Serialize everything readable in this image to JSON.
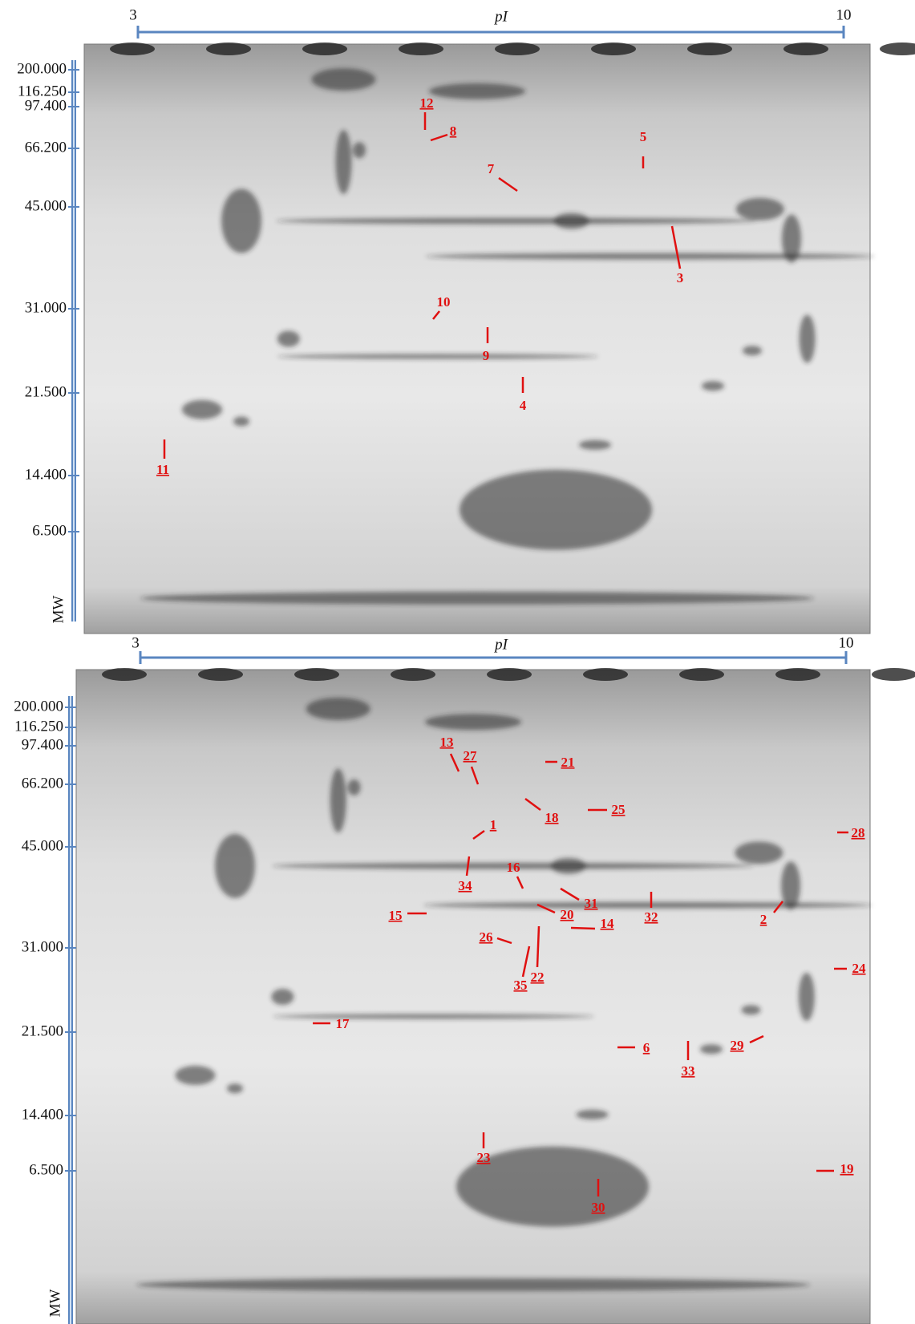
{
  "panels": [
    {
      "pi_axis": {
        "min": "3",
        "max": "10",
        "title": "pI"
      },
      "mw_axis": {
        "labels": [
          "200.000",
          "116.250",
          "97.400",
          "66.200",
          "45.000",
          "31.000",
          "21.500",
          "14.400",
          "6.500"
        ],
        "title": "MW"
      },
      "spots": [
        "12",
        "8",
        "5",
        "7",
        "3",
        "10",
        "9",
        "4",
        "11"
      ]
    },
    {
      "pi_axis": {
        "min": "3",
        "max": "10",
        "title": "pI"
      },
      "mw_axis": {
        "labels": [
          "200.000",
          "116.250",
          "97.400",
          "66.200",
          "45.000",
          "31.000",
          "21.500",
          "14.400",
          "6.500"
        ],
        "title": "MW"
      },
      "spots": [
        "13",
        "27",
        "21",
        "18",
        "25",
        "1",
        "28",
        "16",
        "34",
        "31",
        "20",
        "15",
        "14",
        "32",
        "2",
        "26",
        "22",
        "35",
        "24",
        "17",
        "29",
        "6",
        "33",
        "23",
        "19",
        "30"
      ]
    }
  ]
}
